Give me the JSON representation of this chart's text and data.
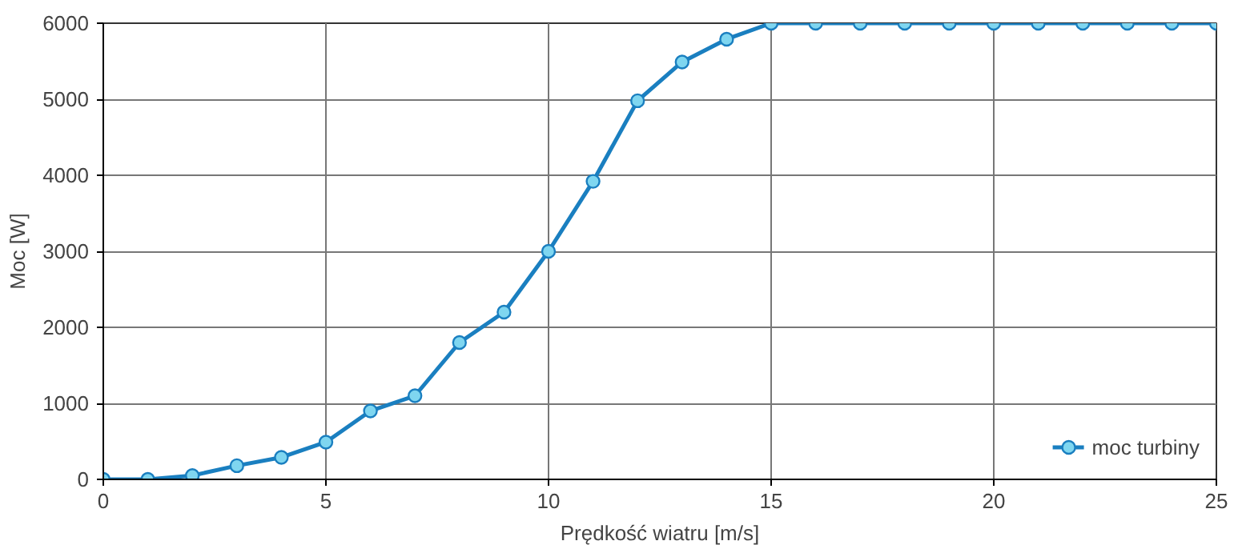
{
  "chart_data": {
    "type": "line",
    "xlabel": "Prędkość wiatru [m/s]",
    "ylabel": "Moc [W]",
    "x": [
      0,
      1,
      2,
      3,
      4,
      5,
      6,
      7,
      8,
      9,
      10,
      11,
      12,
      13,
      14,
      15,
      16,
      17,
      18,
      19,
      20,
      21,
      22,
      23,
      24,
      25
    ],
    "series": [
      {
        "name": "moc turbiny",
        "color": "#1a7fc0",
        "values": [
          0,
          0,
          50,
          180,
          290,
          490,
          900,
          1100,
          1800,
          2200,
          3000,
          3920,
          4980,
          5490,
          5790,
          6000,
          6000,
          6000,
          6000,
          6000,
          6000,
          6000,
          6000,
          6000,
          6000,
          6000
        ]
      }
    ],
    "xlim": [
      0,
      25
    ],
    "ylim": [
      0,
      6000
    ],
    "xticks": [
      0,
      5,
      10,
      15,
      20,
      25
    ],
    "yticks": [
      0,
      1000,
      2000,
      3000,
      4000,
      5000,
      6000
    ],
    "grid": true,
    "legend": "bottom right",
    "marker": "circle",
    "line_style": "solid"
  }
}
